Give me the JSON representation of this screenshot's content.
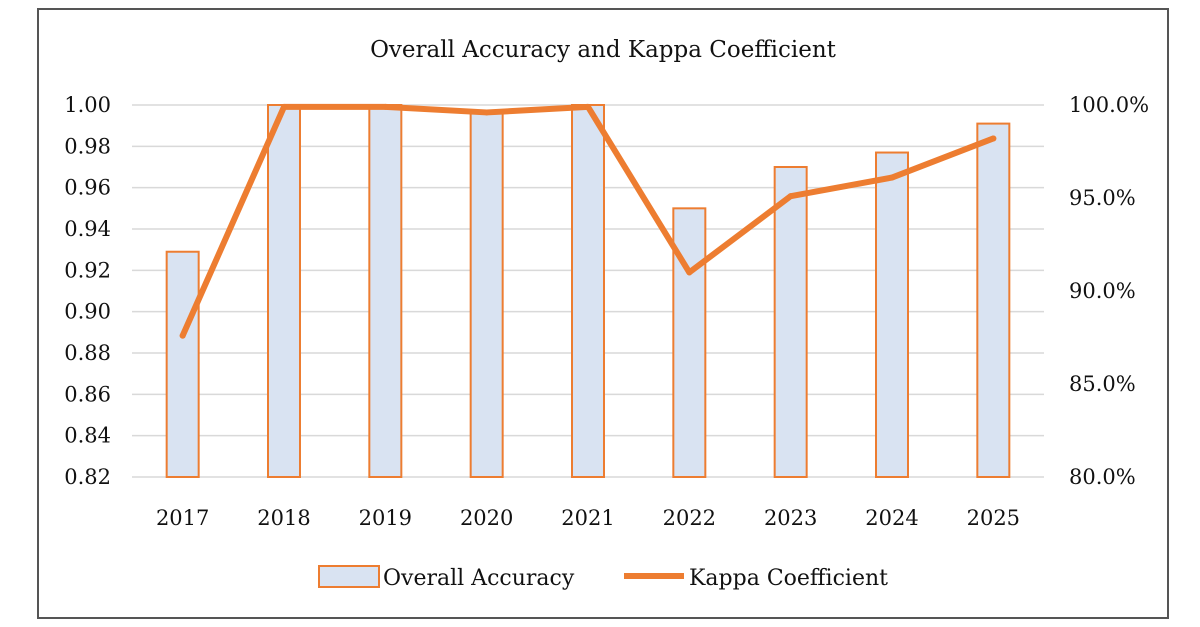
{
  "chart_data": {
    "type": "bar",
    "title": "Overall Accuracy and Kappa Coefficient",
    "categories": [
      "2017",
      "2018",
      "2019",
      "2020",
      "2021",
      "2022",
      "2023",
      "2024",
      "2025"
    ],
    "series": [
      {
        "name": "Overall Accuracy",
        "type": "bar",
        "axis": "left",
        "values": [
          0.929,
          1.0,
          1.0,
          0.997,
          1.0,
          0.95,
          0.97,
          0.977,
          0.991
        ]
      },
      {
        "name": "Kappa Coefficient",
        "type": "line",
        "axis": "right",
        "values": [
          87.6,
          99.9,
          99.9,
          99.6,
          99.9,
          91.0,
          95.1,
          96.1,
          98.2
        ]
      }
    ],
    "y_left": {
      "ylim": [
        0.82,
        1.0
      ],
      "ticks": [
        "1.00",
        "0.98",
        "0.96",
        "0.94",
        "0.92",
        "0.90",
        "0.88",
        "0.86",
        "0.84",
        "0.82"
      ]
    },
    "y_right": {
      "ylim": [
        80.0,
        100.0
      ],
      "ticks": [
        "100.0%",
        "95.0%",
        "90.0%",
        "85.0%",
        "80.0%"
      ]
    },
    "grid": true,
    "legend_position": "bottom",
    "colors": {
      "bar_fill": "#d9e3f2",
      "bar_stroke": "#ed7d31",
      "line": "#ed7d31",
      "grid": "#d9d9d9"
    }
  }
}
